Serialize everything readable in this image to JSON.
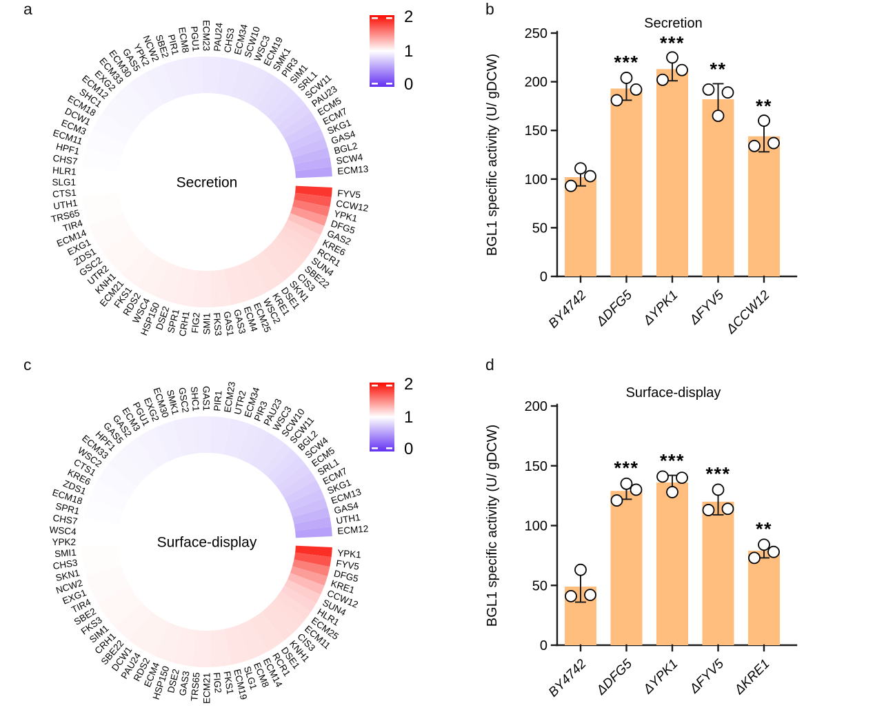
{
  "figure": {
    "panel_letters": {
      "a": "a",
      "b": "b",
      "c": "c",
      "d": "d"
    }
  },
  "colorbar": {
    "tick_labels": [
      "2",
      "1",
      "0"
    ],
    "max": 2,
    "mid": 1,
    "min": 0,
    "max_color": "#FA0A00",
    "mid_color": "#FFFFFF",
    "min_color": "#6230F2"
  },
  "chart_data": [
    {
      "id": "a",
      "type": "heatmap",
      "layout": "circular-ring",
      "center_label": "Secretion",
      "scale": {
        "min": 0,
        "mid": 1,
        "max": 2
      },
      "genes": [
        "FYV5",
        "CCW12",
        "YPK1",
        "DFG5",
        "GAS2",
        "KRE6",
        "RCR1",
        "SUN4",
        "SBE22",
        "CIS3",
        "SKN1",
        "DSE1",
        "KRE1",
        "WSC2",
        "ECM25",
        "ECM4",
        "GAS3",
        "GAS1",
        "FKS3",
        "SMI1",
        "FIG2",
        "CRH1",
        "SPR1",
        "DSE2",
        "HSP150",
        "WSC4",
        "RDS2",
        "FKS1",
        "ECM21",
        "KNH1",
        "UTR2",
        "GSC2",
        "ZDS1",
        "EXG1",
        "ECM14",
        "TIR4",
        "TRS65",
        "UTH1",
        "CTS1",
        "SLG1",
        "HLR1",
        "CHS7",
        "HPF1",
        "ECM11",
        "ECM3",
        "DCW1",
        "ECM18",
        "SHC1",
        "ECM12",
        "EXG2",
        "ECM33",
        "ECM30",
        "GAS5",
        "YPK2",
        "NCW2",
        "SBE2",
        "PIR1",
        "ECM8",
        "PGU1",
        "ECM23",
        "PAU24",
        "CHS3",
        "ECM34",
        "SCW10",
        "WSC3",
        "ECM19",
        "SMK1",
        "PIR3",
        "SIM1",
        "SRL1",
        "SCW11",
        "PAU23",
        "ECM5",
        "ECM7",
        "SKG1",
        "GAS4",
        "BGL2",
        "SCW4",
        "ECM13"
      ],
      "values": [
        1.82,
        1.68,
        1.55,
        1.42,
        1.24,
        1.18,
        1.16,
        1.15,
        1.14,
        1.13,
        1.13,
        1.12,
        1.12,
        1.11,
        1.11,
        1.1,
        1.1,
        1.09,
        1.09,
        1.08,
        1.08,
        1.07,
        1.07,
        1.06,
        1.06,
        1.05,
        1.05,
        1.04,
        1.04,
        1.03,
        1.03,
        1.03,
        1.02,
        1.02,
        1.02,
        1.01,
        1.01,
        1.01,
        1.0,
        1.0,
        1.0,
        0.99,
        0.99,
        0.98,
        0.98,
        0.97,
        0.97,
        0.96,
        0.96,
        0.95,
        0.95,
        0.94,
        0.94,
        0.93,
        0.93,
        0.92,
        0.92,
        0.91,
        0.91,
        0.9,
        0.9,
        0.89,
        0.89,
        0.88,
        0.88,
        0.87,
        0.86,
        0.85,
        0.84,
        0.83,
        0.81,
        0.79,
        0.77,
        0.74,
        0.71,
        0.68,
        0.64,
        0.6,
        0.55
      ]
    },
    {
      "id": "b",
      "type": "bar",
      "title": "Secretion",
      "ylabel": "BGL1 specific activity (U/ gDCW)",
      "ylim": [
        0,
        250
      ],
      "yticks": [
        0,
        50,
        100,
        150,
        200,
        250
      ],
      "categories": [
        "BY4742",
        "ΔDFG5",
        "ΔYPK1",
        "ΔFYV5",
        "ΔCCW12"
      ],
      "values": [
        102,
        193,
        213,
        182,
        144
      ],
      "sd": [
        9,
        12,
        12,
        16,
        16
      ],
      "points": [
        [
          93,
          111,
          103
        ],
        [
          181,
          204,
          192
        ],
        [
          202,
          225,
          212
        ],
        [
          192,
          165,
          189
        ],
        [
          134,
          160,
          137
        ]
      ],
      "significance": [
        "",
        "***",
        "***",
        "**",
        "**"
      ],
      "bar_color": "#FFBE7D"
    },
    {
      "id": "c",
      "type": "heatmap",
      "layout": "circular-ring",
      "center_label": "Surface-display",
      "scale": {
        "min": 0,
        "mid": 1,
        "max": 2
      },
      "genes": [
        "YPK1",
        "FYV5",
        "DFG5",
        "KRE1",
        "CCW12",
        "SUN4",
        "HLR1",
        "ECM25",
        "ECM11",
        "CIS3",
        "KNH1",
        "DSE1",
        "RCR1",
        "ECM14",
        "ECM8",
        "SLG1",
        "ECM19",
        "FKS1",
        "FIG2",
        "ECM21",
        "TRS65",
        "GAS3",
        "DSE2",
        "HSP150",
        "ECM4",
        "RDS2",
        "PAU24",
        "DCW1",
        "SBE22",
        "CRH1",
        "SIM1",
        "FKS3",
        "SBE2",
        "TIR4",
        "EXG1",
        "NCW2",
        "SKN1",
        "CHS3",
        "SMI1",
        "YPK2",
        "WSC4",
        "CHS7",
        "SPR1",
        "ECM18",
        "ZDS1",
        "KRE6",
        "CTS1",
        "WSC2",
        "ECM33",
        "HPF1",
        "GAS5",
        "GAS2",
        "ECM3",
        "PGU1",
        "EXG2",
        "ECM30",
        "SMK1",
        "GSC2",
        "SHC1",
        "GAS1",
        "PIR1",
        "ECM23",
        "UTR2",
        "ECM34",
        "PIR3",
        "PAU23",
        "WSC3",
        "SCW10",
        "SCW11",
        "BGL2",
        "SCW4",
        "ECM5",
        "SRL1",
        "ECM7",
        "SKG1",
        "ECM13",
        "GAS4",
        "UTH1",
        "ECM12"
      ],
      "values": [
        1.85,
        1.7,
        1.52,
        1.4,
        1.28,
        1.2,
        1.17,
        1.15,
        1.14,
        1.13,
        1.13,
        1.12,
        1.12,
        1.11,
        1.11,
        1.1,
        1.1,
        1.09,
        1.09,
        1.08,
        1.08,
        1.07,
        1.07,
        1.06,
        1.06,
        1.05,
        1.05,
        1.05,
        1.04,
        1.04,
        1.03,
        1.03,
        1.03,
        1.02,
        1.02,
        1.02,
        1.01,
        1.01,
        1.01,
        1.0,
        1.0,
        1.0,
        0.99,
        0.99,
        0.98,
        0.98,
        0.97,
        0.97,
        0.96,
        0.96,
        0.95,
        0.95,
        0.94,
        0.94,
        0.93,
        0.93,
        0.92,
        0.92,
        0.91,
        0.91,
        0.9,
        0.9,
        0.89,
        0.89,
        0.88,
        0.87,
        0.86,
        0.86,
        0.85,
        0.83,
        0.81,
        0.79,
        0.77,
        0.74,
        0.71,
        0.68,
        0.64,
        0.59,
        0.54
      ]
    },
    {
      "id": "d",
      "type": "bar",
      "title": "Surface-display",
      "ylabel": "BGL1 specific activity (U/ gDCW)",
      "ylim": [
        0,
        200
      ],
      "yticks": [
        0,
        50,
        100,
        150,
        200
      ],
      "categories": [
        "BY4742",
        "ΔDFG5",
        "ΔYPK1",
        "ΔFYV5",
        "ΔKRE1"
      ],
      "values": [
        49,
        129,
        136,
        120,
        79
      ],
      "sd": [
        13,
        7,
        6,
        11,
        6
      ],
      "points": [
        [
          41,
          63,
          42
        ],
        [
          121,
          135,
          130
        ],
        [
          141,
          128,
          140
        ],
        [
          113,
          130,
          114
        ],
        [
          73,
          84,
          78
        ]
      ],
      "significance": [
        "",
        "***",
        "***",
        "***",
        "**"
      ],
      "bar_color": "#FFBE7D"
    }
  ]
}
